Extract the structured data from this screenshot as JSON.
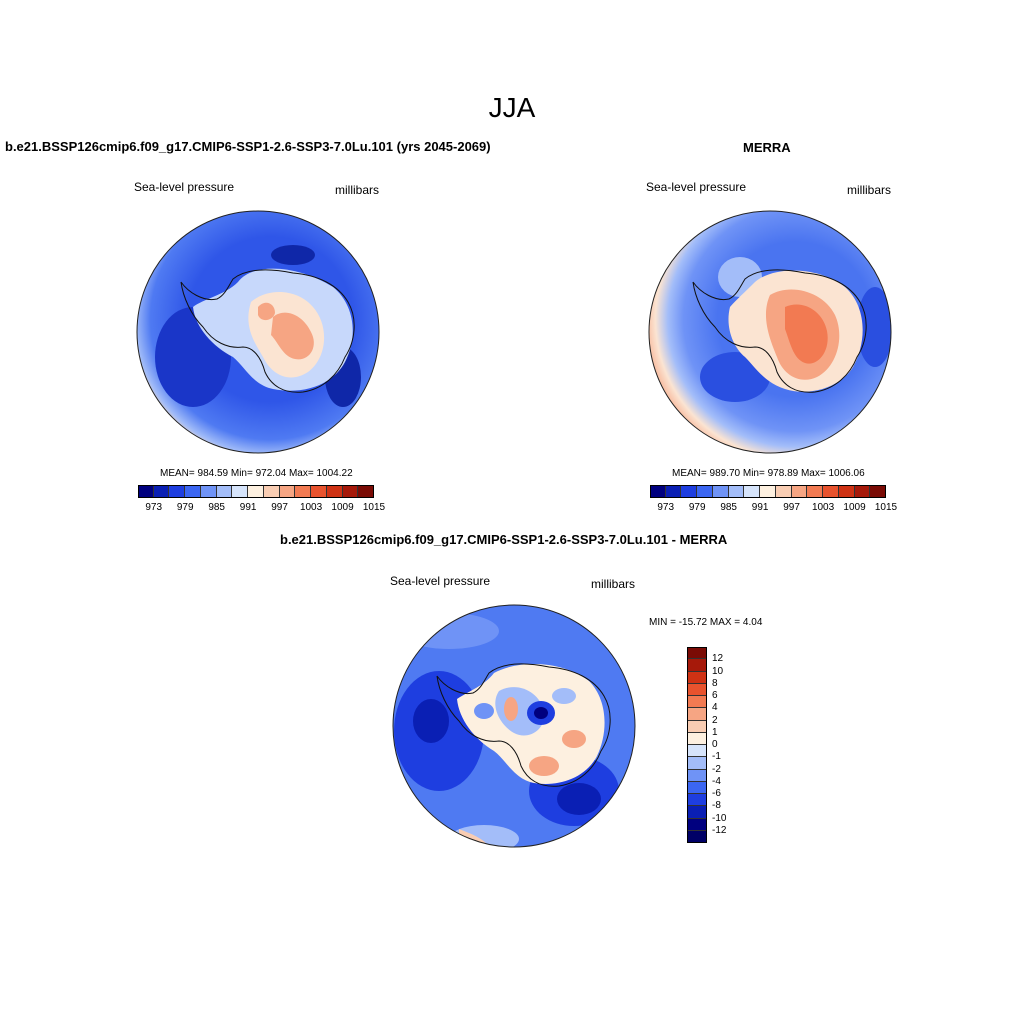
{
  "figure": {
    "title": "JJA"
  },
  "panels": [
    {
      "id": "model",
      "title": "b.e21.BSSP126cmip6.f09_g17.CMIP6-SSP1-2.6-SSP3-7.0Lu.101 (yrs 2045-2069)",
      "left_label": "Sea-level pressure",
      "right_label": "millibars",
      "stats": "MEAN= 984.59  Min= 972.04  Max= 1004.22"
    },
    {
      "id": "obs",
      "title": "MERRA",
      "left_label": "Sea-level pressure",
      "right_label": "millibars",
      "stats": "MEAN= 989.70  Min= 978.89  Max= 1006.06"
    },
    {
      "id": "diff",
      "title": "b.e21.BSSP126cmip6.f09_g17.CMIP6-SSP1-2.6-SSP3-7.0Lu.101 - MERRA",
      "left_label": "Sea-level pressure",
      "right_label": "millibars",
      "stats": "MIN = -15.72 MAX =   4.04"
    }
  ],
  "colorbar_abs": {
    "units": "millibars",
    "tick_labels": [
      "973",
      "979",
      "985",
      "991",
      "997",
      "1003",
      "1009",
      "1015"
    ],
    "colors": [
      "#00007f",
      "#0a1fb4",
      "#1e3ee0",
      "#3b66f2",
      "#6f93f6",
      "#a3bdf9",
      "#d6e4fb",
      "#fdf0e0",
      "#f9cdb3",
      "#f6a583",
      "#f27a52",
      "#e8532e",
      "#cf3214",
      "#a6190a",
      "#7a0b05"
    ]
  },
  "colorbar_diff": {
    "units": "millibars",
    "tick_labels": [
      "12",
      "10",
      "8",
      "6",
      "4",
      "2",
      "1",
      "0",
      "-1",
      "-2",
      "-4",
      "-6",
      "-8",
      "-10",
      "-12"
    ],
    "colors": [
      "#7a0b05",
      "#a6190a",
      "#cf3214",
      "#e8532e",
      "#f27a52",
      "#f6a583",
      "#f9cdb3",
      "#fdf0e0",
      "#d6e4fb",
      "#a3bdf9",
      "#6f93f6",
      "#3b66f2",
      "#1e3ee0",
      "#0a1fb4",
      "#00007f",
      "#000066"
    ]
  }
}
